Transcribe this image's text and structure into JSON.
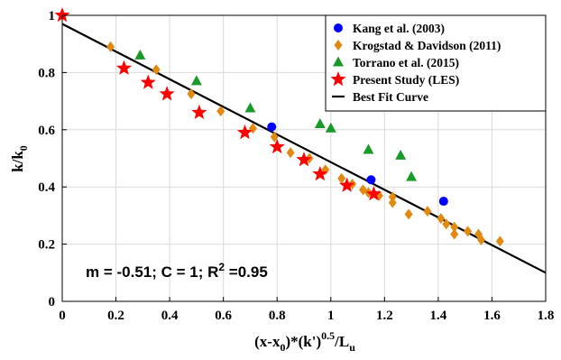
{
  "chart_data": {
    "type": "scatter",
    "xlabel": {
      "main": "(x-x",
      "sub0": "0",
      "mid": ")*(k')",
      "sup": "0.5",
      "slash": "/L",
      "sub1": "u"
    },
    "ylabel": {
      "main": "k/k",
      "sub": "0"
    },
    "xlim": [
      0,
      1.8
    ],
    "ylim": [
      0,
      1
    ],
    "xticks": [
      0,
      0.2,
      0.4,
      0.6,
      0.8,
      1,
      1.2,
      1.4,
      1.6,
      1.8
    ],
    "xtick_labels": [
      "0",
      "0.2",
      "0.4",
      "0.6",
      "0.8",
      "1",
      "1.2",
      "1.4",
      "1.6",
      "1.8"
    ],
    "yticks": [
      0,
      0.2,
      0.4,
      0.6,
      0.8,
      1
    ],
    "ytick_labels": [
      "0",
      "0.2",
      "0.4",
      "0.6",
      "0.8",
      "1"
    ],
    "grid": true,
    "legend_position": "top-right",
    "annotation": {
      "pre": "m = -0.51; C = 1; R",
      "sup": "2",
      "post": " =0.95"
    },
    "series": [
      {
        "name": "Kang et al. (2003)",
        "marker": "circle",
        "color": "#0000ff",
        "points": [
          [
            0.78,
            0.61
          ],
          [
            1.15,
            0.425
          ],
          [
            1.42,
            0.35
          ]
        ]
      },
      {
        "name": "Krogstad & Davidson (2011)",
        "marker": "diamond",
        "color": "#e08a12",
        "points": [
          [
            0.18,
            0.89
          ],
          [
            0.35,
            0.81
          ],
          [
            0.48,
            0.725
          ],
          [
            0.59,
            0.665
          ],
          [
            0.71,
            0.605
          ],
          [
            0.79,
            0.575
          ],
          [
            0.85,
            0.52
          ],
          [
            0.92,
            0.5
          ],
          [
            0.98,
            0.46
          ],
          [
            1.04,
            0.43
          ],
          [
            1.08,
            0.41
          ],
          [
            1.12,
            0.39
          ],
          [
            1.14,
            0.38
          ],
          [
            1.18,
            0.37
          ],
          [
            1.23,
            0.365
          ],
          [
            1.23,
            0.345
          ],
          [
            1.29,
            0.305
          ],
          [
            1.36,
            0.315
          ],
          [
            1.41,
            0.29
          ],
          [
            1.43,
            0.27
          ],
          [
            1.46,
            0.26
          ],
          [
            1.46,
            0.235
          ],
          [
            1.51,
            0.245
          ],
          [
            1.55,
            0.235
          ],
          [
            1.56,
            0.215
          ],
          [
            1.63,
            0.21
          ]
        ]
      },
      {
        "name": "Torrano et al. (2015)",
        "marker": "triangle",
        "color": "#1a9a2a",
        "points": [
          [
            0.29,
            0.86
          ],
          [
            0.5,
            0.77
          ],
          [
            0.7,
            0.675
          ],
          [
            0.96,
            0.62
          ],
          [
            1.0,
            0.605
          ],
          [
            1.14,
            0.53
          ],
          [
            1.26,
            0.51
          ],
          [
            1.3,
            0.435
          ]
        ]
      },
      {
        "name": "Present Study (LES)",
        "marker": "star",
        "color": "#ff0000",
        "points": [
          [
            0.0,
            1.0
          ],
          [
            0.23,
            0.815
          ],
          [
            0.32,
            0.765
          ],
          [
            0.39,
            0.725
          ],
          [
            0.51,
            0.66
          ],
          [
            0.68,
            0.59
          ],
          [
            0.8,
            0.54
          ],
          [
            0.9,
            0.495
          ],
          [
            0.96,
            0.445
          ],
          [
            1.06,
            0.405
          ],
          [
            1.16,
            0.375
          ]
        ]
      },
      {
        "name": "Best Fit Curve",
        "marker": "line",
        "color": "#000000",
        "line": [
          [
            0,
            0.97
          ],
          [
            1.8,
            0.1
          ]
        ]
      }
    ]
  }
}
